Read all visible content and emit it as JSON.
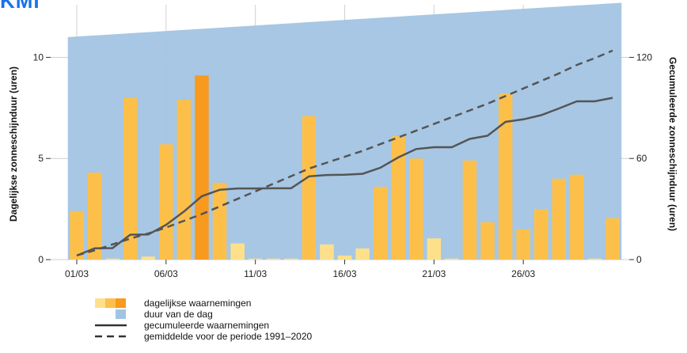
{
  "logo": {
    "text": "KMI"
  },
  "chart_data": {
    "type": "bar",
    "ylabel_left": "Dagelijkse zonneschijnduur (uren)",
    "ylabel_right": "Gecumuleerde zonneschijnduur (uren)",
    "ylim_left": [
      0,
      12.6
    ],
    "ylim_right": [
      0,
      151.2
    ],
    "yticks_left": [
      0,
      5,
      10
    ],
    "yticks_right": [
      0,
      60,
      120
    ],
    "x_tick_days": [
      1,
      6,
      11,
      16,
      21,
      26
    ],
    "x_tick_labels": [
      "01/03",
      "06/03",
      "11/03",
      "16/03",
      "21/03",
      "26/03"
    ],
    "grid": true,
    "legend_position": "bottom",
    "days": [
      1,
      2,
      3,
      4,
      5,
      6,
      7,
      8,
      9,
      10,
      11,
      12,
      13,
      14,
      15,
      16,
      17,
      18,
      19,
      20,
      21,
      22,
      23,
      24,
      25,
      26,
      27,
      28,
      29,
      30,
      31
    ],
    "daily_sunshine": [
      2.4,
      4.3,
      0.05,
      8.0,
      0.15,
      5.7,
      7.9,
      9.1,
      3.8,
      0.8,
      0.05,
      0.05,
      0.05,
      7.1,
      0.75,
      0.2,
      0.55,
      3.6,
      6.1,
      5.0,
      1.05,
      0.05,
      4.9,
      1.85,
      8.2,
      1.5,
      2.5,
      4.0,
      4.2,
      0.05,
      2.05
    ],
    "daylength_start": 11.0,
    "daylength_end": 12.7,
    "cumulative_observed": [
      2.4,
      6.7,
      6.8,
      14.8,
      14.9,
      20.6,
      28.5,
      37.6,
      41.4,
      42.2,
      42.2,
      42.3,
      42.3,
      49.4,
      50.2,
      50.4,
      50.9,
      54.5,
      60.6,
      65.6,
      66.7,
      66.7,
      71.6,
      73.5,
      81.7,
      83.2,
      85.7,
      89.7,
      93.9,
      93.9,
      96.0
    ],
    "cumulative_normal": [
      2.5,
      5.5,
      9.0,
      12.5,
      15.5,
      19.0,
      23.0,
      27.0,
      31.5,
      36.0,
      40.5,
      45.0,
      49.5,
      54.0,
      57.5,
      61.0,
      64.5,
      68.5,
      72.5,
      76.5,
      80.5,
      84.5,
      88.5,
      92.5,
      97.0,
      101.5,
      106.0,
      110.5,
      115.5,
      119.5,
      124.0
    ],
    "bar_color_scale": [
      "#ffe08a",
      "#fcc04a",
      "#f79a1e"
    ],
    "bar_color_thresholds": [
      1.5,
      8.5
    ],
    "daylength_color": "#a2c4e3",
    "line_color": "#555555",
    "legend": [
      {
        "label": "dagelijkse waarnemingen",
        "kind": "bars"
      },
      {
        "label": "duur van de dag",
        "kind": "area"
      },
      {
        "label": "gecumuleerde waarnemingen",
        "kind": "solid"
      },
      {
        "label": "gemiddelde voor de periode 1991–2020",
        "kind": "dashed"
      }
    ]
  }
}
